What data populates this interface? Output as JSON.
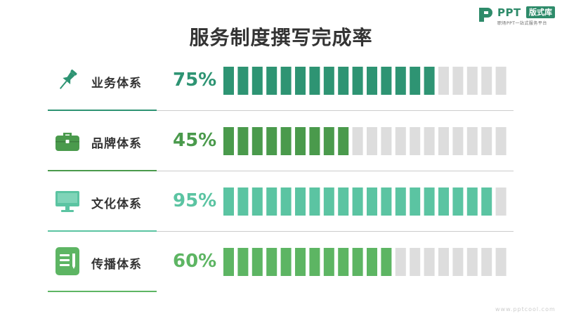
{
  "title": "服务制度撰写完成率",
  "brand": {
    "name": "PPT",
    "badge": "版式库",
    "tagline": "职场PPT一站式服务平台",
    "url": "www.pptcool.com",
    "color": "#2e8b6a"
  },
  "rows": [
    {
      "label": "业务体系",
      "percent_text": "75%",
      "icon": "pushpin-icon",
      "color": "#2e9473"
    },
    {
      "label": "品牌体系",
      "percent_text": "45%",
      "icon": "briefcase-icon",
      "color": "#4a9a4c"
    },
    {
      "label": "文化体系",
      "percent_text": "95%",
      "icon": "monitor-icon",
      "color": "#5bc4a2"
    },
    {
      "label": "传播体系",
      "percent_text": "60%",
      "icon": "document-edit-icon",
      "color": "#5db563"
    }
  ],
  "chart_data": {
    "type": "bar",
    "title": "服务制度撰写完成率",
    "categories": [
      "业务体系",
      "品牌体系",
      "文化体系",
      "传播体系"
    ],
    "values": [
      75,
      45,
      95,
      60
    ],
    "unit": "%",
    "ylim": [
      0,
      100
    ],
    "segments_total": 20,
    "empty_color": "#dddddd"
  }
}
